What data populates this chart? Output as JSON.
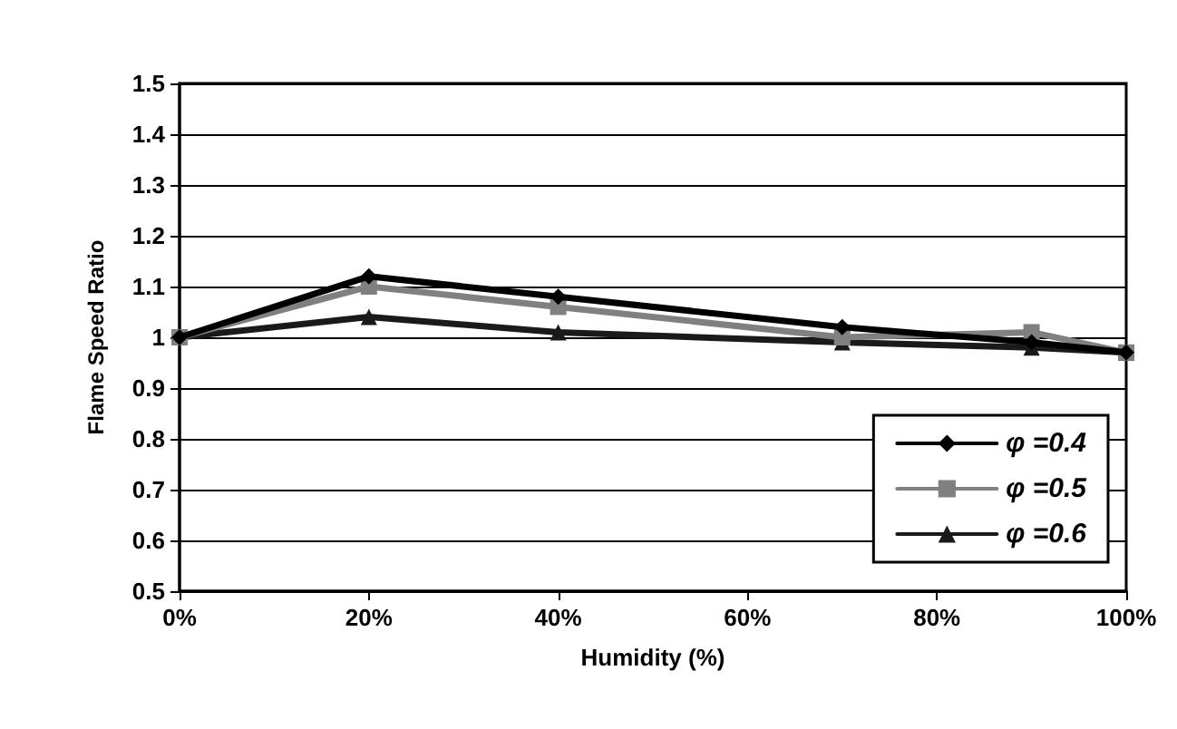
{
  "chart_data": {
    "type": "line",
    "xlabel": "Humidity (%)",
    "ylabel": "Flame Speed Ratio",
    "x": [
      0,
      20,
      40,
      70,
      90,
      100
    ],
    "series": [
      {
        "name": "φ =0.4",
        "color": "#000000",
        "marker": "diamond",
        "values": [
          1.0,
          1.12,
          1.08,
          1.02,
          0.99,
          0.97
        ]
      },
      {
        "name": "φ =0.5",
        "color": "#808080",
        "marker": "square",
        "values": [
          1.0,
          1.1,
          1.06,
          1.0,
          1.01,
          0.97
        ]
      },
      {
        "name": "φ =0.6",
        "color": "#1a1a1a",
        "marker": "triangle",
        "values": [
          1.0,
          1.04,
          1.01,
          0.99,
          0.98,
          0.97
        ]
      }
    ],
    "xlim": [
      0,
      100
    ],
    "xticks": [
      {
        "value": 0,
        "label": "0%"
      },
      {
        "value": 20,
        "label": "20%"
      },
      {
        "value": 40,
        "label": "40%"
      },
      {
        "value": 60,
        "label": "60%"
      },
      {
        "value": 80,
        "label": "80%"
      },
      {
        "value": 100,
        "label": "100%"
      }
    ],
    "ylim": [
      0.5,
      1.5
    ],
    "yticks": [
      0.5,
      0.6,
      0.7,
      0.8,
      0.9,
      1,
      1.1,
      1.2,
      1.3,
      1.4,
      1.5
    ],
    "grid": "y",
    "legend": "bottom right"
  }
}
